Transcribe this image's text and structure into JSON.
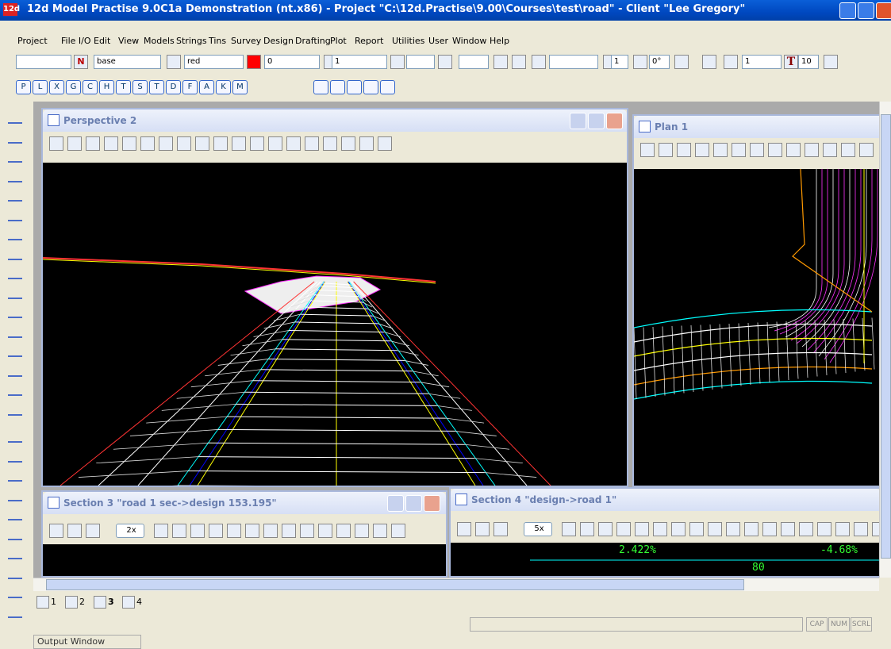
{
  "window_title": "12d Model Practise 9.0C1a Demonstration (nt.x86) - Project \"C:\\12d.Practise\\9.00\\Courses\\test\\road\" - Client \"Lee Gregory\"",
  "menu": [
    "Project",
    "File I/O",
    "Edit",
    "View",
    "Models",
    "Strings",
    "Tins",
    "Survey",
    "Design",
    "Drafting",
    "Plot",
    "Report",
    "Utilities",
    "User",
    "Window",
    "Help"
  ],
  "toolbar": {
    "n_button": "N",
    "model": "base",
    "colour": "red",
    "weight": "0",
    "style": "1",
    "increment": "1",
    "rotation": "0°",
    "text_size": "1",
    "t_button": "T",
    "font_size": "10"
  },
  "letter_buttons": [
    "P",
    "L",
    "X",
    "G",
    "C",
    "H",
    "T",
    "S",
    "T",
    "D",
    "F",
    "A",
    "K",
    "M"
  ],
  "windows": {
    "perspective": {
      "title": "Perspective 2"
    },
    "plan": {
      "title": "Plan 1"
    },
    "section3": {
      "title": "Section 3 \"road 1 sec->design 153.195\"",
      "zoom": "2x"
    },
    "section4": {
      "title": "Section 4 \"design->road 1\"",
      "zoom": "5x",
      "grade_left": "2.422%",
      "grade_right": "-4.68%",
      "chainage": "80"
    }
  },
  "tabs": [
    "1",
    "2",
    "3",
    "4"
  ],
  "status": [
    "CAP",
    "NUM",
    "SCRL"
  ],
  "output_tab": "Output Window"
}
